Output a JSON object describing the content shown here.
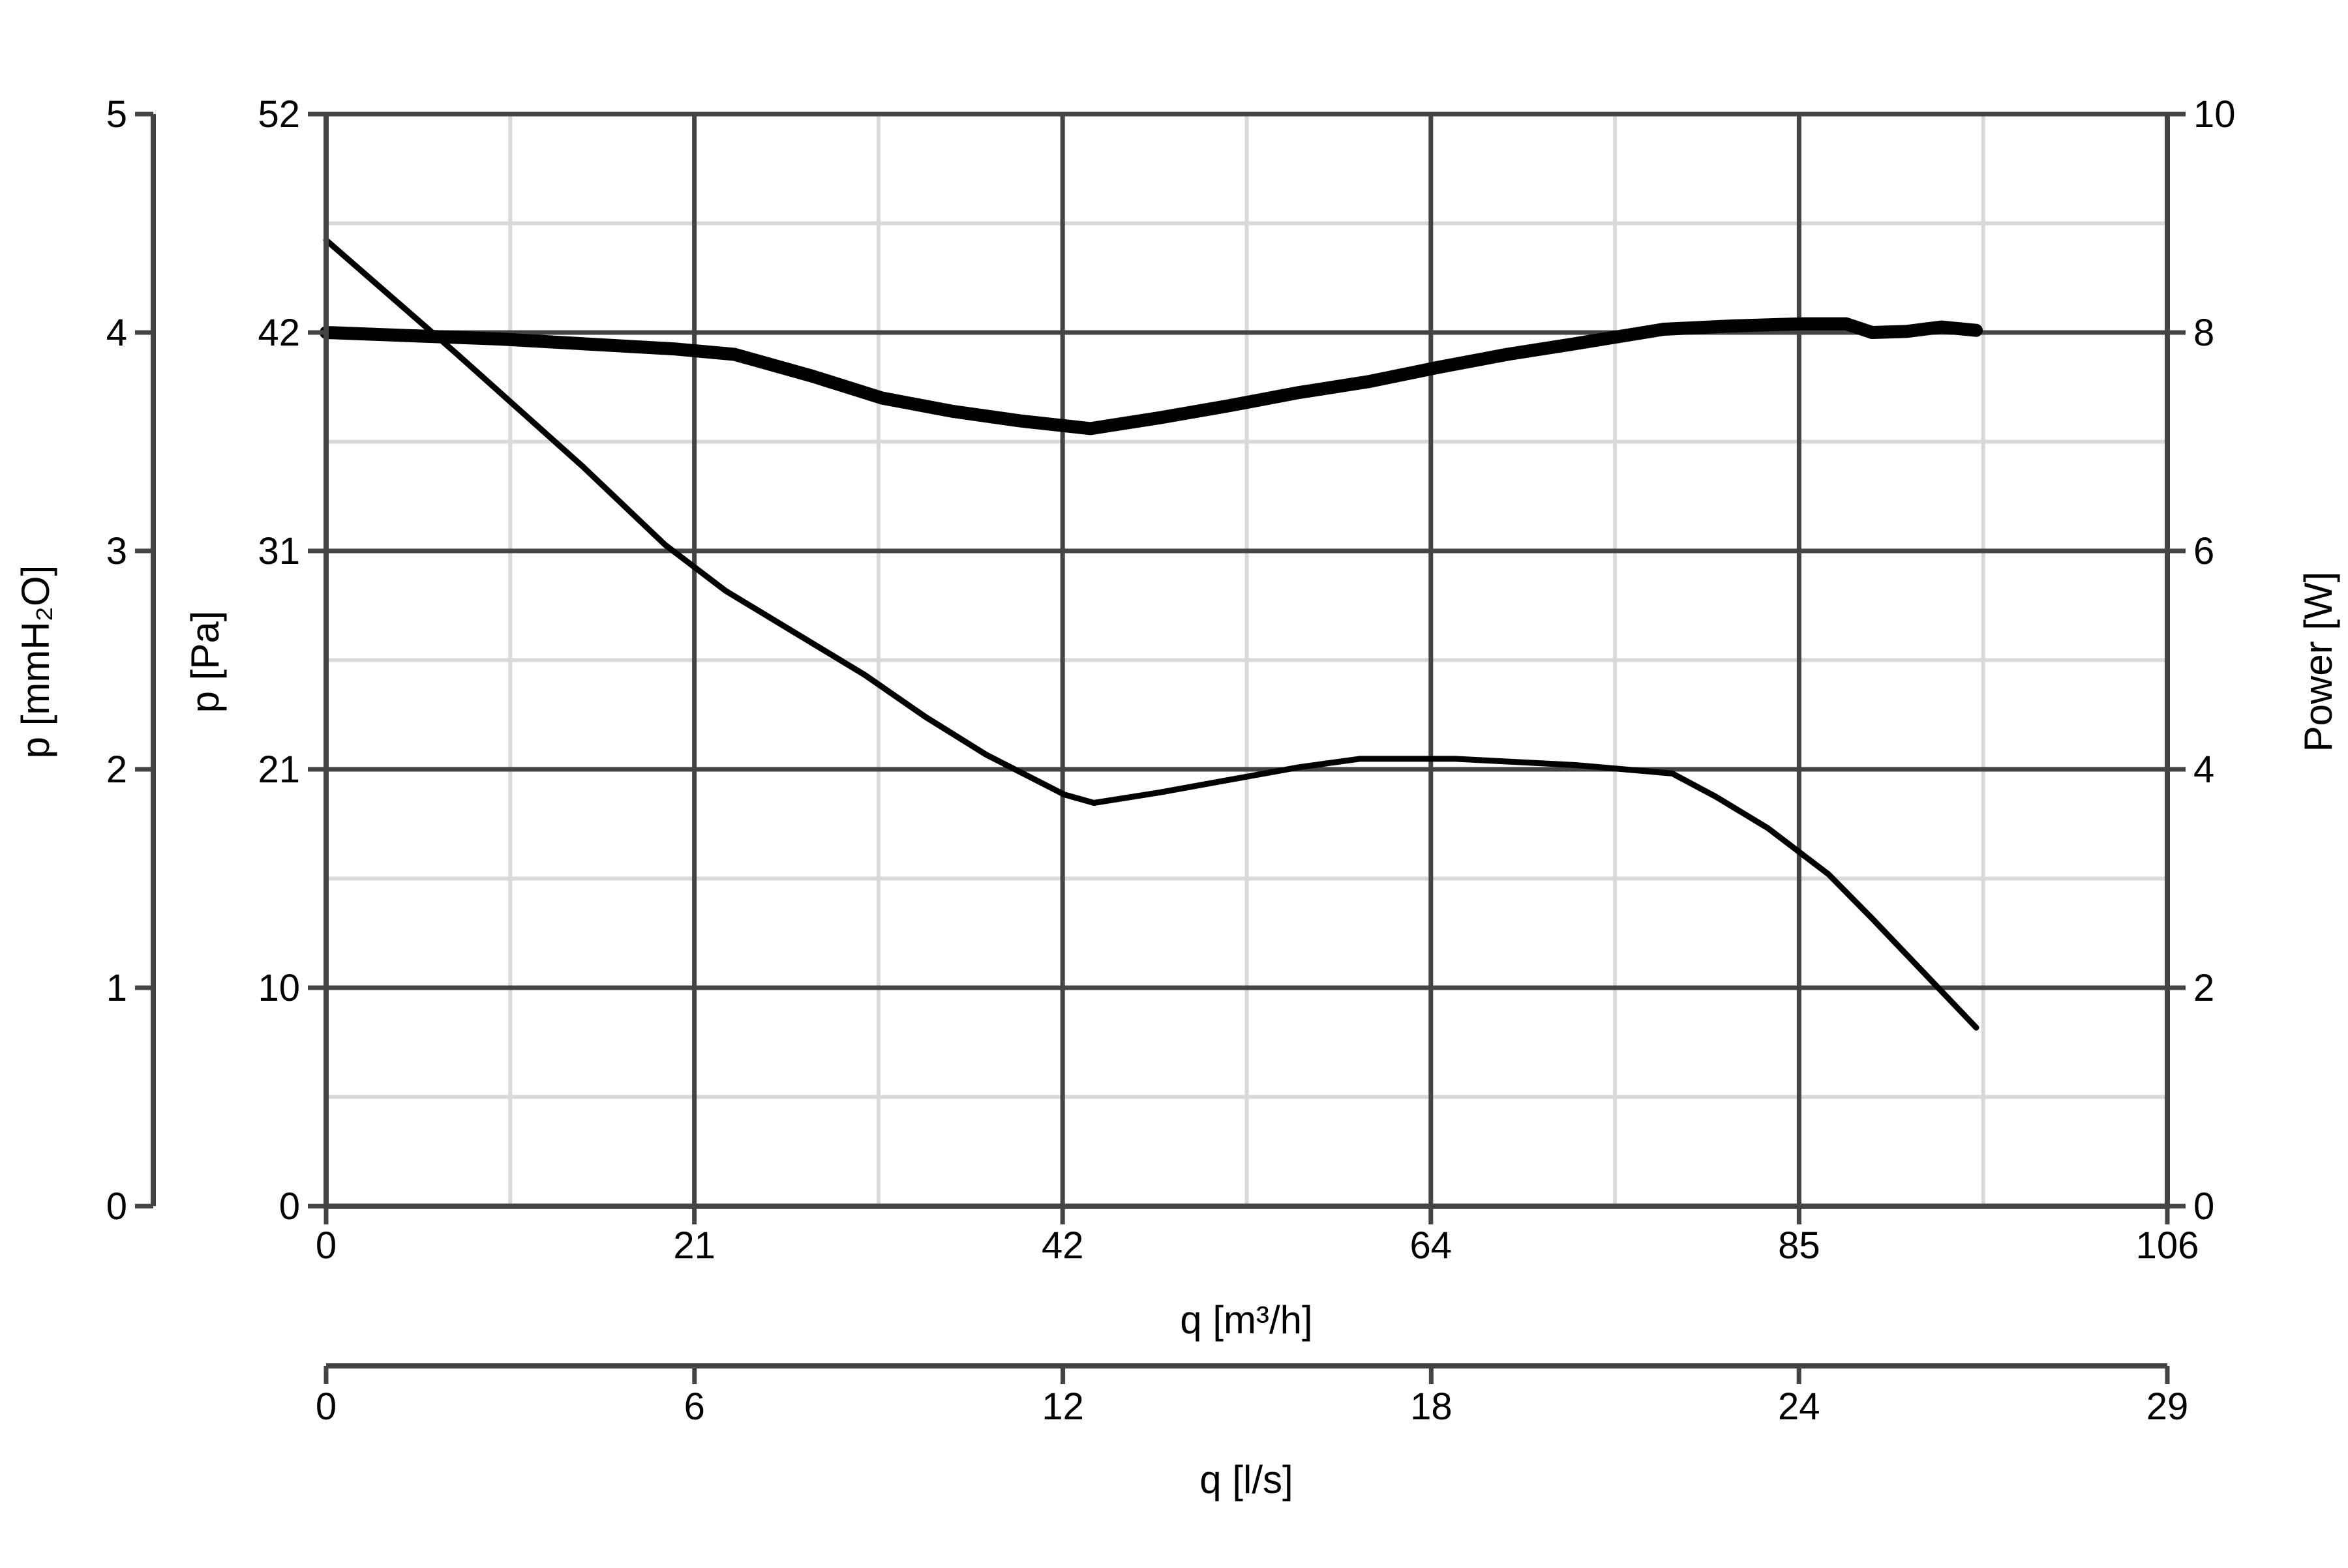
{
  "chart_data": {
    "type": "line",
    "title": "",
    "grid": true,
    "colors": {
      "axis": "#444444",
      "major_grid": "#444444",
      "minor_grid": "#d9d9d9",
      "curve": "#000000"
    },
    "x_axis": {
      "label": "q [m³/h]",
      "range": [
        0,
        106
      ],
      "tick_values": [
        0,
        21.2,
        42.4,
        63.6,
        84.8,
        106
      ],
      "tick_labels": [
        "0",
        "21",
        "42",
        "64",
        "85",
        "106"
      ]
    },
    "x_axis_secondary": {
      "label": "q [l/s]",
      "range": [
        0,
        29.44
      ],
      "tick_values": [
        0,
        5.89,
        11.78,
        17.67,
        23.55,
        29.44
      ],
      "tick_labels": [
        "0",
        "6",
        "12",
        "18",
        "24",
        "29"
      ]
    },
    "y_axis_left_pa": {
      "label": "p [Pa]",
      "range": [
        0,
        52
      ],
      "tick_values": [
        0,
        10.4,
        20.8,
        31.2,
        41.6,
        52
      ],
      "tick_labels": [
        "0",
        "10",
        "21",
        "31",
        "42",
        "52"
      ]
    },
    "y_axis_left_mmh2o": {
      "label": "p [mmH₂O]",
      "range": [
        0,
        5
      ],
      "tick_values": [
        0,
        1,
        2,
        3,
        4,
        5
      ],
      "tick_labels": [
        "0",
        "1",
        "2",
        "3",
        "4",
        "5"
      ]
    },
    "y_axis_right_power": {
      "label": "Power [W]",
      "range": [
        0,
        10
      ],
      "tick_values": [
        0,
        2,
        4,
        6,
        8,
        10
      ],
      "tick_labels": [
        "0",
        "2",
        "4",
        "6",
        "8",
        "10"
      ]
    },
    "series": [
      {
        "axis": "pa",
        "stroke": "thin",
        "points": [
          [
            0,
            46
          ],
          [
            7.5,
            40.6
          ],
          [
            14.8,
            35.2
          ],
          [
            19.5,
            31.5
          ],
          [
            23,
            29.3
          ],
          [
            27,
            27.3
          ],
          [
            31,
            25.3
          ],
          [
            34.5,
            23.3
          ],
          [
            38,
            21.5
          ],
          [
            42.5,
            19.6
          ],
          [
            44.2,
            19.2
          ],
          [
            48,
            19.7
          ],
          [
            52,
            20.3
          ],
          [
            56,
            20.9
          ],
          [
            59.5,
            21.3
          ],
          [
            65,
            21.3
          ],
          [
            72,
            21.0
          ],
          [
            77.5,
            20.6
          ],
          [
            80,
            19.5
          ],
          [
            83,
            18
          ],
          [
            86.5,
            15.8
          ],
          [
            89,
            13.7
          ],
          [
            92,
            11.1
          ],
          [
            95,
            8.5
          ]
        ]
      },
      {
        "axis": "power",
        "stroke": "thick",
        "points": [
          [
            0,
            8.0
          ],
          [
            10,
            7.94
          ],
          [
            20,
            7.85
          ],
          [
            23.5,
            7.8
          ],
          [
            28,
            7.6
          ],
          [
            32,
            7.4
          ],
          [
            36,
            7.28
          ],
          [
            40,
            7.19
          ],
          [
            44,
            7.12
          ],
          [
            48,
            7.22
          ],
          [
            52,
            7.33
          ],
          [
            56,
            7.45
          ],
          [
            60,
            7.55
          ],
          [
            64,
            7.68
          ],
          [
            68,
            7.8
          ],
          [
            72,
            7.9
          ],
          [
            77,
            8.03
          ],
          [
            81,
            8.06
          ],
          [
            85,
            8.08
          ],
          [
            87.5,
            8.08
          ],
          [
            89,
            8.0
          ],
          [
            91,
            8.01
          ],
          [
            93,
            8.05
          ],
          [
            95,
            8.02
          ]
        ]
      }
    ]
  }
}
